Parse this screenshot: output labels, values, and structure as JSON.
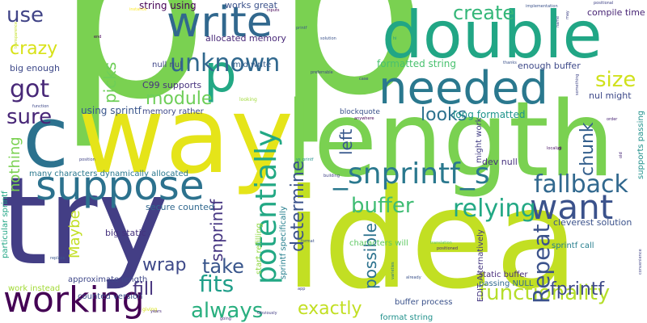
{
  "words": [
    {
      "text": "p",
      "color": "#7ad151"
    },
    {
      "text": "p",
      "color": "#7ad151"
    },
    {
      "text": "way",
      "color": "#e5e419"
    },
    {
      "text": "length",
      "color": "#7ad151"
    },
    {
      "text": "idea",
      "color": "#c2df23"
    },
    {
      "text": "try",
      "color": "#433e85"
    },
    {
      "text": "double",
      "color": "#21a685"
    },
    {
      "text": "needed",
      "color": "#2a788e"
    },
    {
      "text": "c",
      "color": "#2c728e"
    },
    {
      "text": "p",
      "color": "#22a884"
    },
    {
      "text": "suppose",
      "color": "#2c728e"
    },
    {
      "text": "write",
      "color": "#31688e"
    },
    {
      "text": "potentially",
      "color": "#22a884"
    },
    {
      "text": "working",
      "color": "#440154"
    },
    {
      "text": "unknown",
      "color": "#31688e"
    },
    {
      "text": "want",
      "color": "#3b528b"
    },
    {
      "text": "_snprintf_s",
      "color": "#2a788e"
    },
    {
      "text": "fallback",
      "color": "#31688e"
    },
    {
      "text": "functionality",
      "color": "#b5de2b"
    },
    {
      "text": "got",
      "color": "#482878"
    },
    {
      "text": "sure",
      "color": "#482677"
    },
    {
      "text": "use",
      "color": "#414487"
    },
    {
      "text": "crazy",
      "color": "#d8e219"
    },
    {
      "text": "picks",
      "color": "#6ece58"
    },
    {
      "text": "module",
      "color": "#6ece58"
    },
    {
      "text": "create",
      "color": "#35b779"
    },
    {
      "text": "size",
      "color": "#d0e11c"
    },
    {
      "text": "looks",
      "color": "#2c728e"
    },
    {
      "text": "chunk",
      "color": "#35608d"
    },
    {
      "text": "relying",
      "color": "#22a884"
    },
    {
      "text": "buffer",
      "color": "#3fbc73"
    },
    {
      "text": "determine",
      "color": "#3b528b"
    },
    {
      "text": "Repeat",
      "color": "#3b528b"
    },
    {
      "text": "fits",
      "color": "#1f9e89"
    },
    {
      "text": "always",
      "color": "#29af7f"
    },
    {
      "text": "take",
      "color": "#39568c"
    },
    {
      "text": "wrap",
      "color": "#3e4989"
    },
    {
      "text": "fill",
      "color": "#46337e"
    },
    {
      "text": "exactly",
      "color": "#c2df23"
    },
    {
      "text": "fprintf",
      "color": "#3e4989"
    },
    {
      "text": "nothing",
      "color": "#7ad151"
    },
    {
      "text": "snprintf",
      "color": "#453581"
    },
    {
      "text": "possible",
      "color": "#2c728e"
    },
    {
      "text": "left",
      "color": "#38588c"
    },
    {
      "text": "Maybe",
      "color": "#c2df23"
    },
    {
      "text": "string using",
      "color": "#440154"
    },
    {
      "text": "works great",
      "color": "#3b528b"
    },
    {
      "text": "allocated memory",
      "color": "#482878"
    },
    {
      "text": "null nul",
      "color": "#404688"
    },
    {
      "text": "mid write",
      "color": "#355f8d"
    },
    {
      "text": "C99 supports",
      "color": "#46327e"
    },
    {
      "text": "using sprintf",
      "color": "#39568c"
    },
    {
      "text": "memory rather",
      "color": "#3e4989"
    },
    {
      "text": "formatted string",
      "color": "#48c16e"
    },
    {
      "text": "enough buffer",
      "color": "#3e4989"
    },
    {
      "text": "nul might",
      "color": "#3e4989"
    },
    {
      "text": "compile time",
      "color": "#482475"
    },
    {
      "text": "big enough",
      "color": "#3e4989"
    },
    {
      "text": "long formatted",
      "color": "#1f948c"
    },
    {
      "text": "dev null",
      "color": "#46327e"
    },
    {
      "text": "supports passing",
      "color": "#21918c"
    },
    {
      "text": "many characters dynamically allocated",
      "color": "#2a788e"
    },
    {
      "text": "secure counted",
      "color": "#31688e"
    },
    {
      "text": "big static",
      "color": "#46327e"
    },
    {
      "text": "cleverest solution",
      "color": "#3b528b"
    },
    {
      "text": "sprintf call",
      "color": "#277f8e"
    },
    {
      "text": "static buffer",
      "color": "#472a7a"
    },
    {
      "text": "passing NULL",
      "color": "#306a8e"
    },
    {
      "text": "buffer process",
      "color": "#3b528b"
    },
    {
      "text": "format string",
      "color": "#21918c"
    },
    {
      "text": "approximate length",
      "color": "#3f4889"
    },
    {
      "text": "work instead",
      "color": "#a2da37"
    },
    {
      "text": "counted version",
      "color": "#3b528b"
    },
    {
      "text": "characters will",
      "color": "#5ec962"
    },
    {
      "text": "blockquote",
      "color": "#3b528b"
    },
    {
      "text": "particular sprintf",
      "color": "#21a685"
    },
    {
      "text": "EDIT Alternatively",
      "color": "#453781"
    },
    {
      "text": "start refilling",
      "color": "#90d743"
    },
    {
      "text": "sprintf specifically",
      "color": "#277f8e"
    },
    {
      "text": "might work",
      "color": "#433e85"
    },
    {
      "text": "inputs",
      "color": "#440154"
    },
    {
      "text": "implementation",
      "color": "#3b528b"
    },
    {
      "text": "positional",
      "color": "#414487"
    },
    {
      "text": "looking",
      "color": "#a0da39"
    },
    {
      "text": "thanks",
      "color": "#3b528b"
    },
    {
      "text": "preferrable",
      "color": "#414487"
    },
    {
      "text": "anywhere",
      "color": "#440154"
    },
    {
      "text": "localize",
      "color": "#471164"
    },
    {
      "text": "building",
      "color": "#414487"
    },
    {
      "text": "varieties",
      "color": "#2a788e"
    },
    {
      "text": "translation",
      "color": "#5ec962"
    },
    {
      "text": "positioned",
      "color": "#482878"
    },
    {
      "text": "already",
      "color": "#3b528b"
    },
    {
      "text": "giving",
      "color": "#d8e219"
    },
    {
      "text": "going",
      "color": "#46337e"
    },
    {
      "text": "years",
      "color": "#482878"
    },
    {
      "text": "Obviously",
      "color": "#433e85"
    },
    {
      "text": "replace",
      "color": "#39568c"
    },
    {
      "text": "function",
      "color": "#3e4989"
    },
    {
      "text": "position",
      "color": "#414487"
    },
    {
      "text": "order",
      "color": "#482475"
    },
    {
      "text": "convenience",
      "color": "#414487"
    },
    {
      "text": "printf",
      "color": "#39568c"
    },
    {
      "text": "solution",
      "color": "#3b528b"
    },
    {
      "text": "end",
      "color": "#440154"
    },
    {
      "text": "may",
      "color": "#414487"
    },
    {
      "text": "old",
      "color": "#482878"
    },
    {
      "text": "format",
      "color": "#3b528b"
    },
    {
      "text": "app",
      "color": "#414487"
    },
    {
      "text": "hi",
      "color": "#1f9e89"
    },
    {
      "text": "d",
      "color": "#440154"
    },
    {
      "text": "name",
      "color": "#3e4989"
    },
    {
      "text": "something",
      "color": "#404688"
    },
    {
      "text": "transparence",
      "color": "#c2df23"
    },
    {
      "text": "instance",
      "color": "#fde725"
    },
    {
      "text": "vs_printf",
      "color": "#21918c"
    },
    {
      "text": "case",
      "color": "#3e4989"
    }
  ]
}
